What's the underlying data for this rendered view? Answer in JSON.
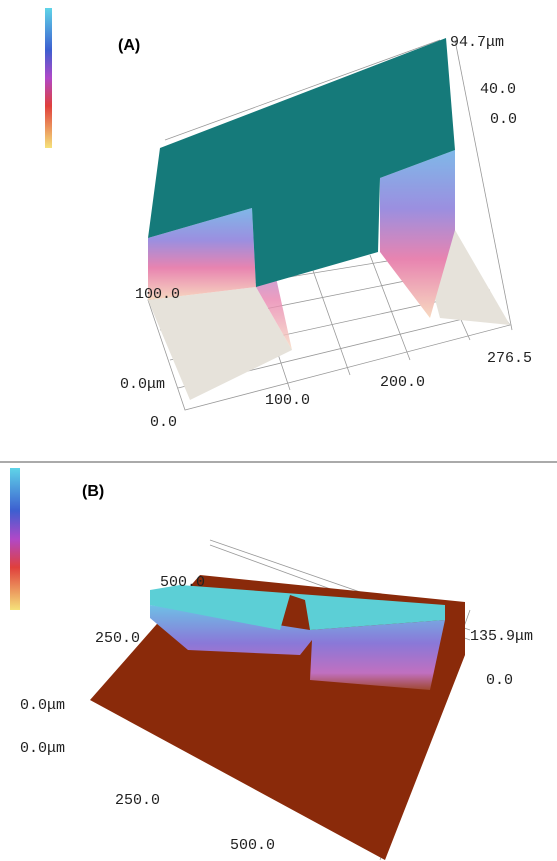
{
  "panels": [
    {
      "label": "(A)",
      "axis_labels": [
        "94.7μm",
        "40.0",
        "0.0",
        "100.0",
        "0.0μm",
        "100.0",
        "200.0",
        "276.5",
        "0.0"
      ]
    },
    {
      "label": "(B)",
      "axis_labels": [
        "500.0",
        "250.0",
        "0.0μm",
        "0.0μm",
        "250.0",
        "500.0",
        "135.9μm",
        "0.0"
      ]
    }
  ]
}
